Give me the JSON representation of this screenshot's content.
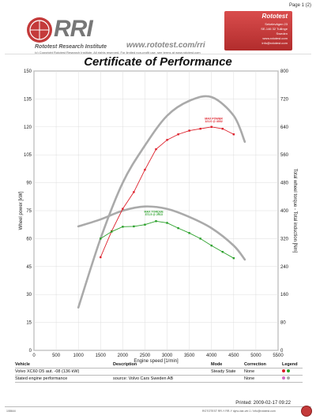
{
  "page_label": "Page 1 (2)",
  "header": {
    "brand": "RRI",
    "org_name": "Rototest Research Institute",
    "copyright": "(c) Copyright Rototest Research Institute, All rights reserved. For limited non-profit use, see terms at www.rototest.com",
    "url": "www.rototest.com/rri",
    "address_title": "Rototest",
    "address_lines": [
      "Sekelevägen 23",
      "SE-146 32 Tullinge",
      "Sweden",
      "www.rototest.com",
      "info@rototest.com"
    ],
    "accent_color": "#c43a3a"
  },
  "title": "Certificate of Performance",
  "chart_data": {
    "type": "line",
    "xlabel": "Engine speed [1/min]",
    "ylabel": "Wheel power [kW]",
    "y2label": "Total wheel torque - Total induction [Nm]",
    "xlim": [
      0,
      5500
    ],
    "ylim": [
      0,
      150
    ],
    "y2lim": [
      0,
      800
    ],
    "x_ticks": [
      0,
      500,
      1000,
      1500,
      2000,
      2500,
      3000,
      3500,
      4000,
      4500,
      5000,
      5500
    ],
    "y_ticks": [
      0,
      15,
      30,
      45,
      60,
      75,
      90,
      105,
      120,
      135,
      150
    ],
    "y2_ticks": [
      0,
      80,
      160,
      240,
      320,
      400,
      480,
      560,
      640,
      720,
      800
    ],
    "grid": true,
    "series": [
      {
        "name": "",
        "axis": "left",
        "color": "#dd1f2a",
        "markers": true,
        "x": [
          1500,
          1750,
          2000,
          2250,
          2500,
          2750,
          3000,
          3250,
          3500,
          3750,
          4000,
          4250,
          4500
        ],
        "y": [
          50,
          64,
          76,
          85,
          97,
          108,
          113,
          116,
          118,
          119,
          120,
          119,
          116
        ]
      },
      {
        "name": "",
        "axis": "right",
        "color": "#2aa02a",
        "markers": true,
        "x": [
          1500,
          1750,
          2000,
          2250,
          2500,
          2750,
          3000,
          3250,
          3500,
          3750,
          4000,
          4250,
          4500
        ],
        "y": [
          320,
          340,
          354,
          355,
          360,
          370,
          365,
          350,
          336,
          320,
          300,
          282,
          264
        ]
      },
      {
        "name": "",
        "axis": "left",
        "color": "#aaaaaa",
        "markers": false,
        "stated": true,
        "x": [
          1000,
          1500,
          2000,
          2500,
          3000,
          3500,
          4000,
          4500,
          4750
        ],
        "y": [
          23,
          60,
          90,
          110,
          126,
          134,
          136,
          126,
          112
        ]
      },
      {
        "name": "",
        "axis": "right",
        "color": "#aaaaaa",
        "markers": false,
        "stated": true,
        "x": [
          1000,
          1500,
          2000,
          2500,
          3000,
          3500,
          4000,
          4500,
          4750
        ],
        "y": [
          355,
          375,
          400,
          412,
          405,
          382,
          350,
          300,
          260
        ]
      }
    ],
    "annotations": [
      {
        "text": "MAX POWER",
        "x": 4050,
        "y": 124,
        "axis": "left",
        "color": "#dd1f2a"
      },
      {
        "text": "121.0 @ 4002",
        "x": 4050,
        "y": 122.5,
        "axis": "left",
        "color": "#dd1f2a"
      },
      {
        "text": "MAX TORQUE",
        "x": 2700,
        "y": 74,
        "axis": "left",
        "color": "#2aa02a"
      },
      {
        "text": "371.5 @ 2913",
        "x": 2700,
        "y": 72.5,
        "axis": "left",
        "color": "#2aa02a"
      }
    ]
  },
  "table": {
    "headers": [
      "Vehicle",
      "Description",
      "Mode",
      "Correction",
      "Legend"
    ],
    "rows": [
      {
        "vehicle": "Volvo XC60 D5 aut. -08 (136 kW)",
        "description": "",
        "mode": "Steady State",
        "correction": "None",
        "legend_colors": [
          "#dd1f2a",
          "#2aa02a"
        ]
      },
      {
        "vehicle": "Stated engine performance",
        "description": "source: Volvo Cars Sweden AB",
        "mode": "",
        "correction": "None",
        "legend_colors": [
          "#d36ac2",
          "#aaaaaa"
        ]
      }
    ]
  },
  "printed": "Printed: 2009-02-17 09:22",
  "footer": {
    "id": "108644",
    "copy": "ROTOTEST RR-Y RR-Y dyno-bar-ver.1 / info@rototest.com"
  }
}
